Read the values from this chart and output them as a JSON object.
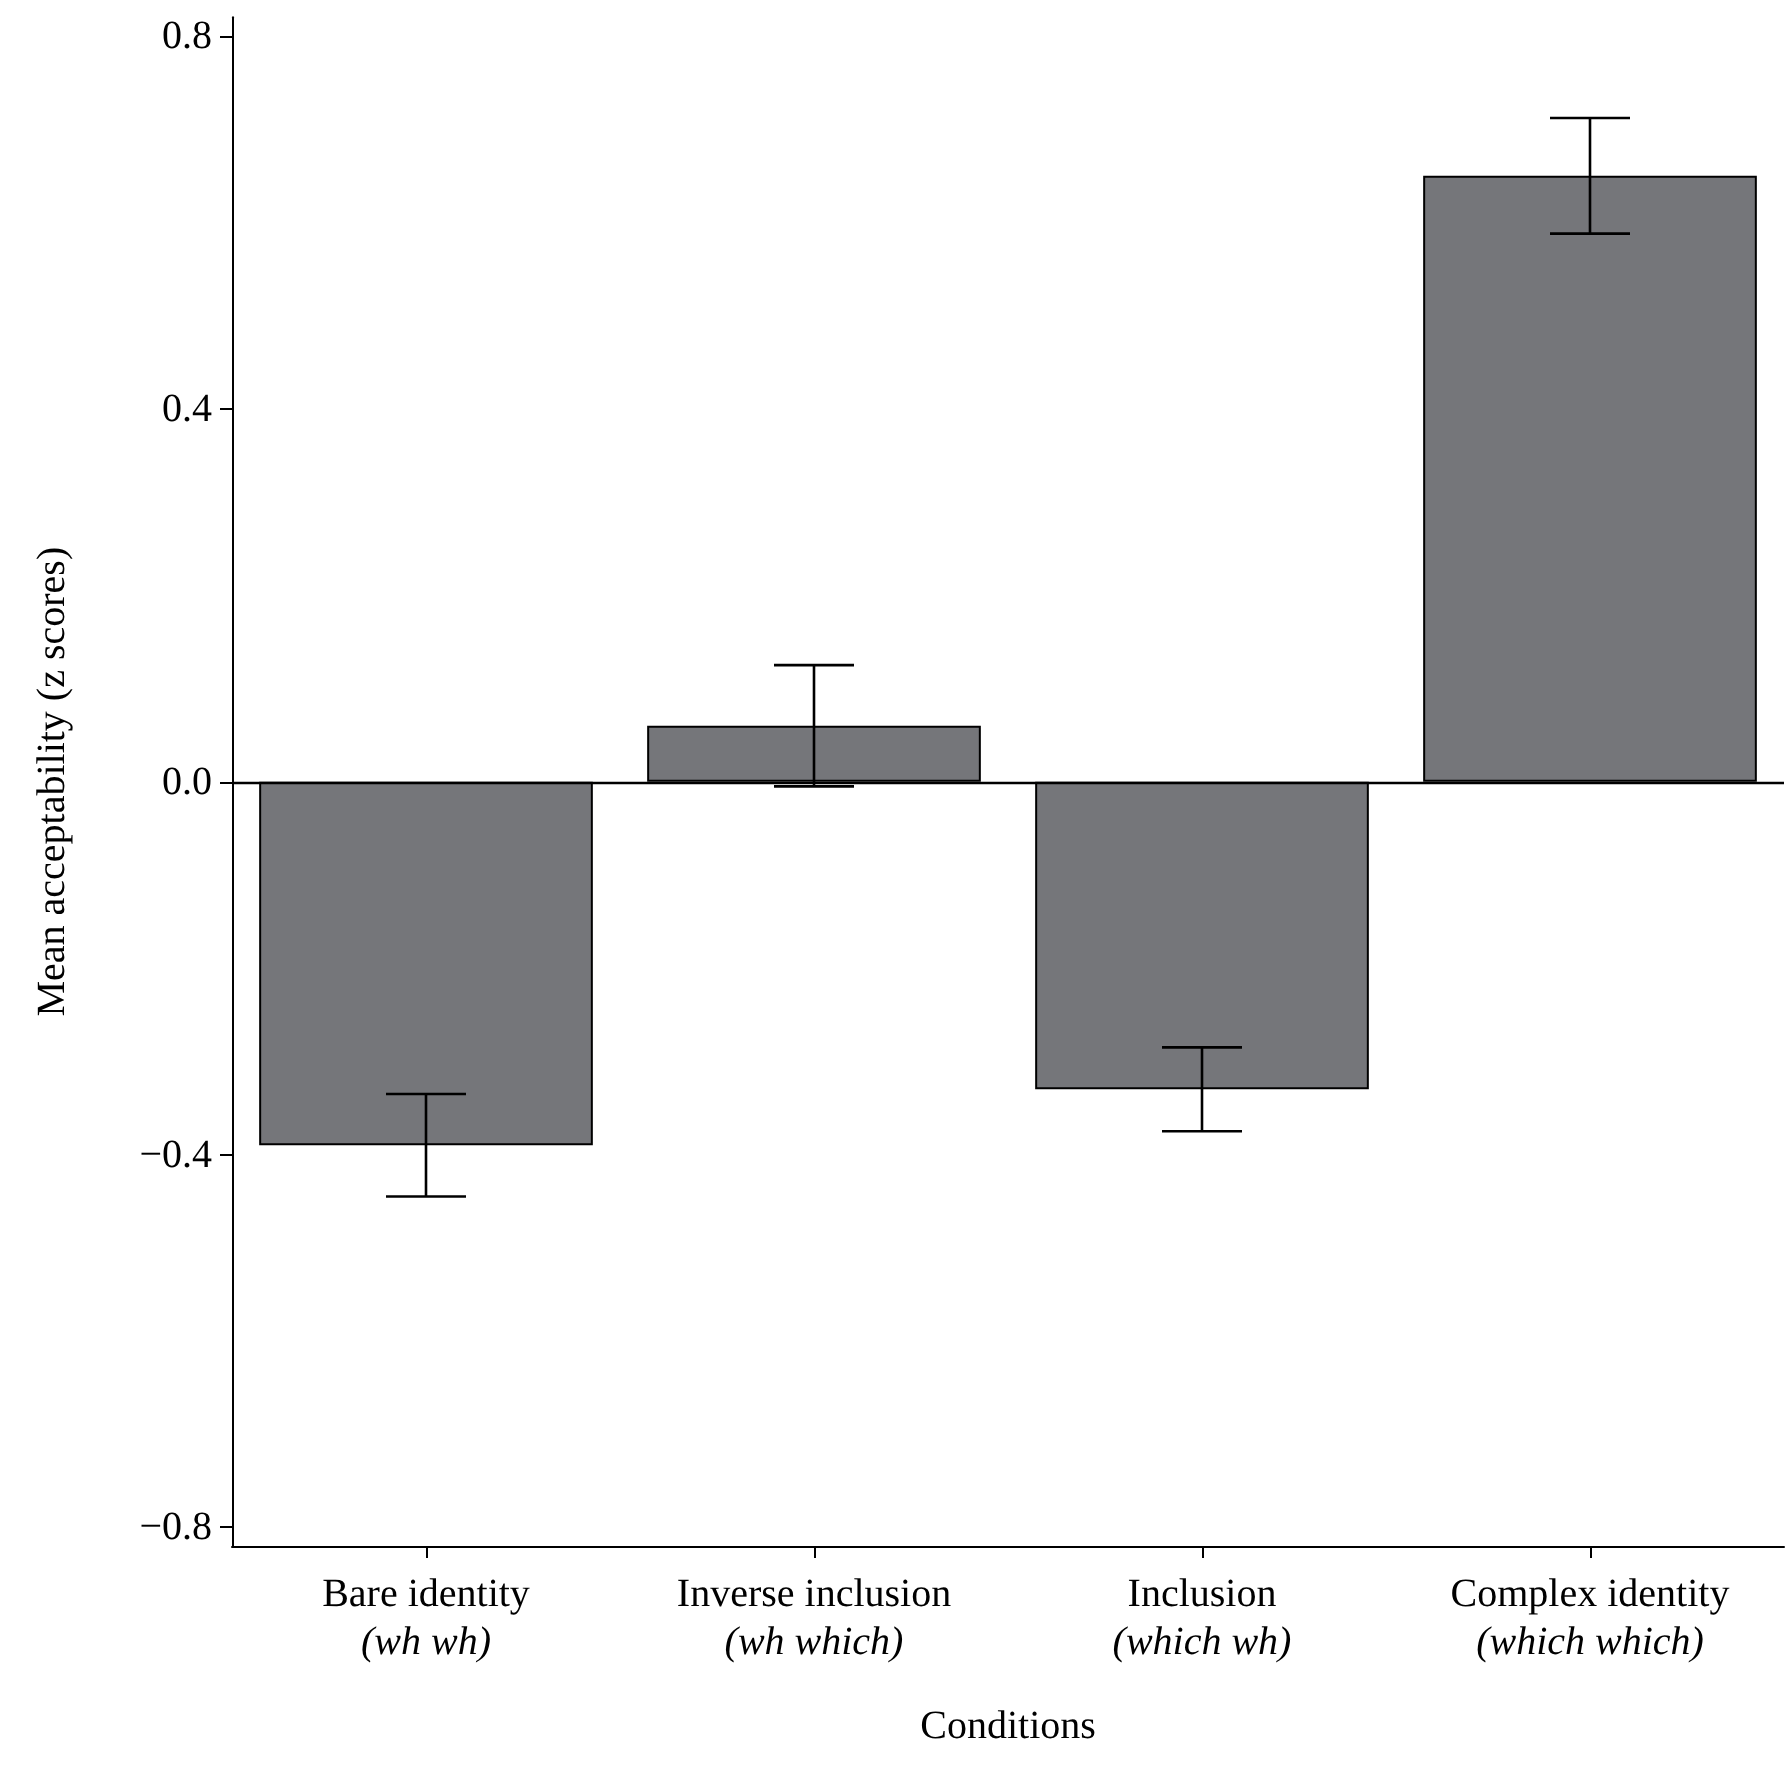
{
  "chart_data": {
    "type": "bar",
    "xlabel": "Conditions",
    "ylabel": "Mean acceptability (z scores)",
    "categories": [
      "Bare identity\n(wh wh)",
      "Inverse inclusion\n(wh which)",
      "Inclusion\n(which wh)",
      "Complex identity\n(which which)"
    ],
    "values": [
      -0.39,
      0.06,
      -0.33,
      0.65
    ],
    "errors": [
      0.055,
      0.065,
      0.045,
      0.062
    ],
    "color": "#75767a",
    "ylim": [
      -0.82,
      0.82
    ],
    "yticks": [
      {
        "value": -0.8,
        "label": "−0.8"
      },
      {
        "value": -0.4,
        "label": "−0.4"
      },
      {
        "value": 0,
        "label": "0.0"
      },
      {
        "value": 0.4,
        "label": "0.4"
      },
      {
        "value": 0.8,
        "label": "0.8"
      }
    ],
    "ref_lines": [
      {
        "axis": "y",
        "value": 0
      }
    ],
    "grid": false
  }
}
